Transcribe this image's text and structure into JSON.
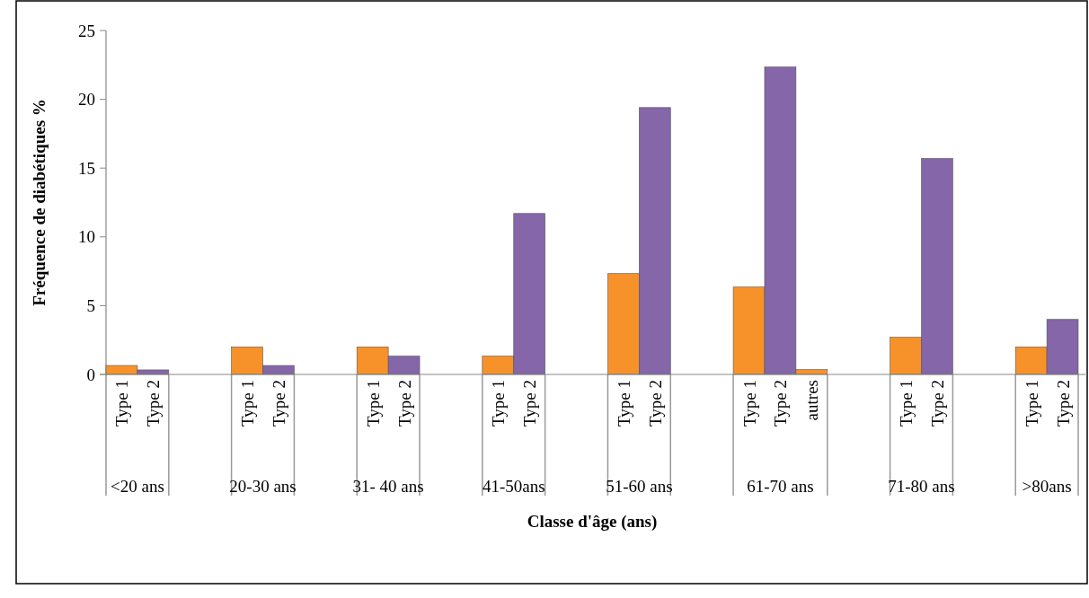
{
  "chart_data": {
    "type": "bar",
    "xlabel": "Classe d'âge (ans)",
    "ylabel": "Fréquence de diabétiques %",
    "categories": [
      "<20 ans",
      "20-30 ans",
      "31- 40 ans",
      "41-50ans",
      "51-60 ans",
      "61-70 ans",
      "71-80 ans",
      ">80ans"
    ],
    "series": [
      {
        "name": "Type 1",
        "color": "#f7922a",
        "values": [
          0.65,
          2.0,
          2.0,
          1.33,
          7.33,
          6.35,
          2.7,
          2.0
        ]
      },
      {
        "name": "Type 2",
        "color": "#8566a8",
        "values": [
          0.33,
          0.65,
          1.33,
          11.7,
          19.4,
          22.35,
          15.7,
          4.0
        ]
      },
      {
        "name": "autres",
        "color": "#f7922a",
        "values": [
          null,
          null,
          null,
          null,
          null,
          0.35,
          null,
          null
        ]
      }
    ],
    "ylim": [
      0,
      25
    ],
    "yticks": [
      0,
      5,
      10,
      15,
      20,
      25
    ],
    "grid": false
  }
}
